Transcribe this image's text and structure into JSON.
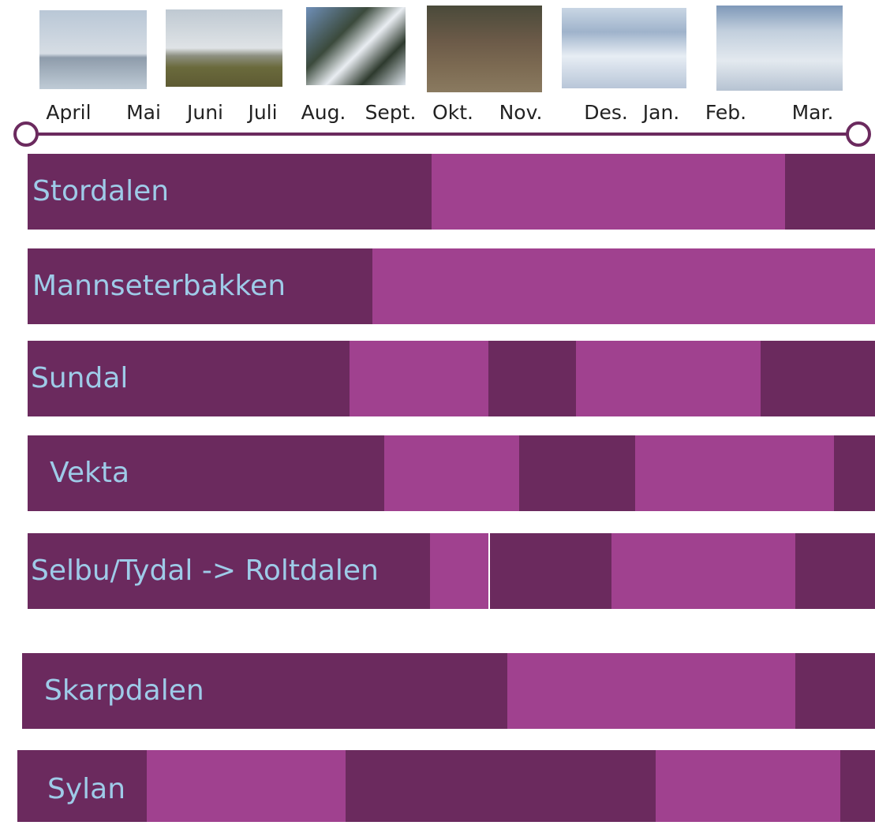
{
  "timeline": {
    "months": [
      "April",
      "Mai",
      "Juni",
      "Juli",
      "Aug.",
      "Sept.",
      "Okt.",
      "Nov.",
      "Des.",
      "Jan.",
      "Feb.",
      "Mar."
    ]
  },
  "rows": [
    {
      "label": "Stordalen"
    },
    {
      "label": "Mannseterbakken"
    },
    {
      "label": "Sundal"
    },
    {
      "label": "Vekta"
    },
    {
      "label": "Selbu/Tydal -> Roltdalen"
    },
    {
      "label": "Skarpdalen"
    },
    {
      "label": "Sylan"
    }
  ]
}
